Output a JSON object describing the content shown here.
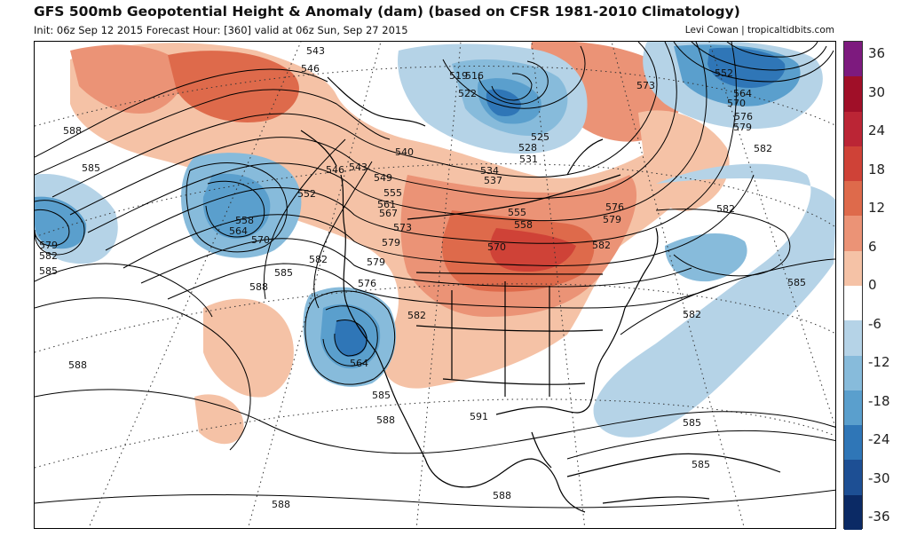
{
  "header": {
    "title": "GFS 500mb Geopotential Height & Anomaly (dam) (based on CFSR 1981-2010 Climatology)",
    "subtitle": "Init: 06z Sep 12 2015   Forecast Hour: [360]   valid at 06z Sun, Sep 27 2015",
    "credit": "Levi Cowan | tropicaltidbits.com"
  },
  "colorbar": {
    "labels": [
      "36",
      "30",
      "24",
      "18",
      "12",
      "6",
      "0",
      "-6",
      "-12",
      "-18",
      "-24",
      "-30",
      "-36"
    ],
    "colors": [
      "#7d1a7e",
      "#a00f28",
      "#bb2535",
      "#cf4237",
      "#de6a4b",
      "#eb9376",
      "#f5c2a6",
      "#ffffff",
      "#b5d3e7",
      "#87bbdb",
      "#5a9fcd",
      "#2f76b7",
      "#1d4f94",
      "#0b2a65"
    ]
  },
  "map": {
    "contour_labels": {
      "c543": "543",
      "c546a": "546",
      "c519": "519",
      "c516": "516",
      "c522": "522",
      "c525": "525",
      "c528": "528",
      "c531": "531",
      "c534": "534",
      "c537": "537",
      "c540": "540",
      "c543b": "543",
      "c546b": "546",
      "c549": "549",
      "c552": "552",
      "c555": "555",
      "c561": "561",
      "c567": "567",
      "c573": "573",
      "c579": "579",
      "c576": "576",
      "c558": "558",
      "c564": "564",
      "c570": "570",
      "c582": "582",
      "c585": "585",
      "c588": "588",
      "c591": "591"
    },
    "label_list": [
      {
        "id": "l543a",
        "t": "543"
      },
      {
        "id": "l546a",
        "t": "546"
      },
      {
        "id": "l519",
        "t": "519"
      },
      {
        "id": "l516",
        "t": "516"
      },
      {
        "id": "l522",
        "t": "522"
      },
      {
        "id": "l525",
        "t": "525"
      },
      {
        "id": "l528",
        "t": "528"
      },
      {
        "id": "l531",
        "t": "531"
      },
      {
        "id": "l534",
        "t": "534"
      },
      {
        "id": "l537",
        "t": "537"
      },
      {
        "id": "l540",
        "t": "540"
      },
      {
        "id": "l543b",
        "t": "543"
      },
      {
        "id": "l546b",
        "t": "546"
      },
      {
        "id": "l549",
        "t": "549"
      },
      {
        "id": "l552a",
        "t": "552"
      },
      {
        "id": "l555",
        "t": "555"
      },
      {
        "id": "l561",
        "t": "561"
      },
      {
        "id": "l567",
        "t": "567"
      },
      {
        "id": "l573a",
        "t": "573"
      },
      {
        "id": "l579a",
        "t": "579"
      },
      {
        "id": "l543c",
        "t": "543"
      },
      {
        "id": "l546c",
        "t": "546"
      },
      {
        "id": "l552b",
        "t": "552"
      },
      {
        "id": "l558a",
        "t": "558"
      },
      {
        "id": "l564a",
        "t": "564"
      },
      {
        "id": "l570a",
        "t": "570"
      },
      {
        "id": "l573b",
        "t": "573"
      },
      {
        "id": "l576a",
        "t": "576"
      },
      {
        "id": "l579b",
        "t": "579"
      },
      {
        "id": "l582a",
        "t": "582"
      },
      {
        "id": "l573c",
        "t": "573"
      },
      {
        "id": "l552c",
        "t": "552"
      },
      {
        "id": "l564b",
        "t": "564"
      },
      {
        "id": "l570b",
        "t": "570"
      },
      {
        "id": "l576b",
        "t": "576"
      },
      {
        "id": "l579c",
        "t": "579"
      },
      {
        "id": "l582b",
        "t": "582"
      },
      {
        "id": "l582c",
        "t": "582"
      },
      {
        "id": "l585a",
        "t": "585"
      },
      {
        "id": "l582d",
        "t": "582"
      },
      {
        "id": "l588a",
        "t": "588"
      },
      {
        "id": "l585b",
        "t": "585"
      },
      {
        "id": "l579d",
        "t": "579"
      },
      {
        "id": "l582e",
        "t": "582"
      },
      {
        "id": "l585c",
        "t": "585"
      },
      {
        "id": "l558b",
        "t": "558"
      },
      {
        "id": "l564c",
        "t": "564"
      },
      {
        "id": "l570c",
        "t": "570"
      },
      {
        "id": "l582f",
        "t": "582"
      },
      {
        "id": "l585d",
        "t": "585"
      },
      {
        "id": "l588b",
        "t": "588"
      },
      {
        "id": "l576c",
        "t": "576"
      },
      {
        "id": "l579e",
        "t": "579"
      },
      {
        "id": "l582g",
        "t": "582"
      },
      {
        "id": "l564d",
        "t": "564"
      },
      {
        "id": "l585e",
        "t": "585"
      },
      {
        "id": "l588c",
        "t": "588"
      },
      {
        "id": "l591",
        "t": "591"
      },
      {
        "id": "l588d",
        "t": "588"
      },
      {
        "id": "l588e",
        "t": "588"
      },
      {
        "id": "l585f",
        "t": "585"
      },
      {
        "id": "l585g",
        "t": "585"
      },
      {
        "id": "l588f",
        "t": "588"
      },
      {
        "id": "l582h",
        "t": "582"
      },
      {
        "id": "l585h",
        "t": "585"
      },
      {
        "id": "l576d",
        "t": "576"
      },
      {
        "id": "l576e",
        "t": "576"
      },
      {
        "id": "l579f",
        "t": "579"
      },
      {
        "id": "l582i",
        "t": "582"
      },
      {
        "id": "l558c",
        "t": "558"
      },
      {
        "id": "l555b",
        "t": "555"
      },
      {
        "id": "l570d",
        "t": "570"
      },
      {
        "id": "l588g",
        "t": "588"
      }
    ]
  }
}
